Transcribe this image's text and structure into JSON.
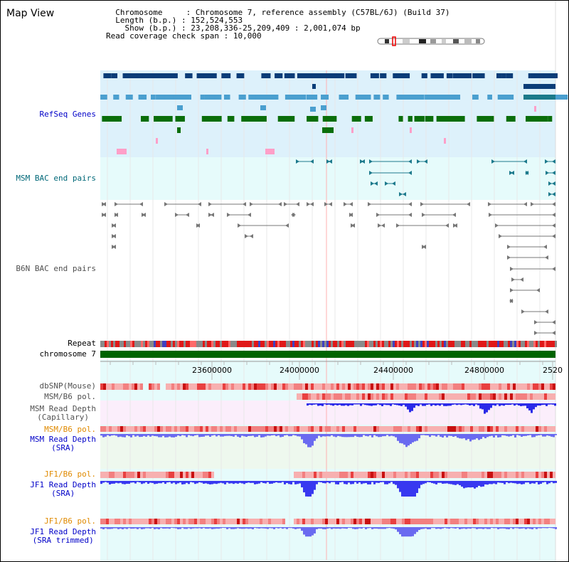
{
  "header": {
    "title": "Map View",
    "chromosome_label": "Chromosome",
    "chromosome_value": "Chromosome 7, reference assembly (C57BL/6J) (Build 37)",
    "length_label": "Length (b.p.)",
    "length_value": "152,524,553",
    "show_label": "Show (b.p.)",
    "show_value": "23,208,336-25,209,409 : 2,001,074 bp",
    "span_label": "Read coverage check span",
    "span_value": "10,000"
  },
  "tracks": {
    "refseq": "RefSeq Genes",
    "msm_bac": "MSM BAC end pairs",
    "b6n_bac": "B6N BAC end pairs",
    "repeat": "Repeat",
    "chrom": "chromosome 7",
    "dbsnp": "dbSNP(Mouse)",
    "msm_b6_pol1": "MSM/B6 pol.",
    "msm_depth_cap_1": "MSM Read Depth",
    "msm_depth_cap_2": "(Capillary)",
    "msm_b6_pol2": "MSM/B6 pol.",
    "msm_depth_sra_1": "MSM Read Depth",
    "msm_depth_sra_2": "(SRA)",
    "jf1_b6_pol1": "JF1/B6 pol.",
    "jf1_depth_sra_1": "JF1 Read Depth",
    "jf1_depth_sra_2": "(SRA)",
    "jf1_b6_pol2": "JF1/B6 pol.",
    "jf1_depth_trim_1": "JF1 Read Depth",
    "jf1_depth_trim_2": "(SRA trimmed)"
  },
  "axis": {
    "ticks": [
      "23600000",
      "24000000",
      "24400000",
      "24800000",
      "2520"
    ]
  },
  "colors": {
    "refseq_bg": "#ddf1fb",
    "bac_bg": "#e6fbfb",
    "gene_dark": "#0b3d78",
    "gene_mid": "#4a9fcf",
    "gene_green": "#0a6e0a",
    "gene_pink": "#ff9fc8",
    "chrom_green": "#006400",
    "depth_blue": "#3030e8",
    "pol_red": "#e02020"
  }
}
